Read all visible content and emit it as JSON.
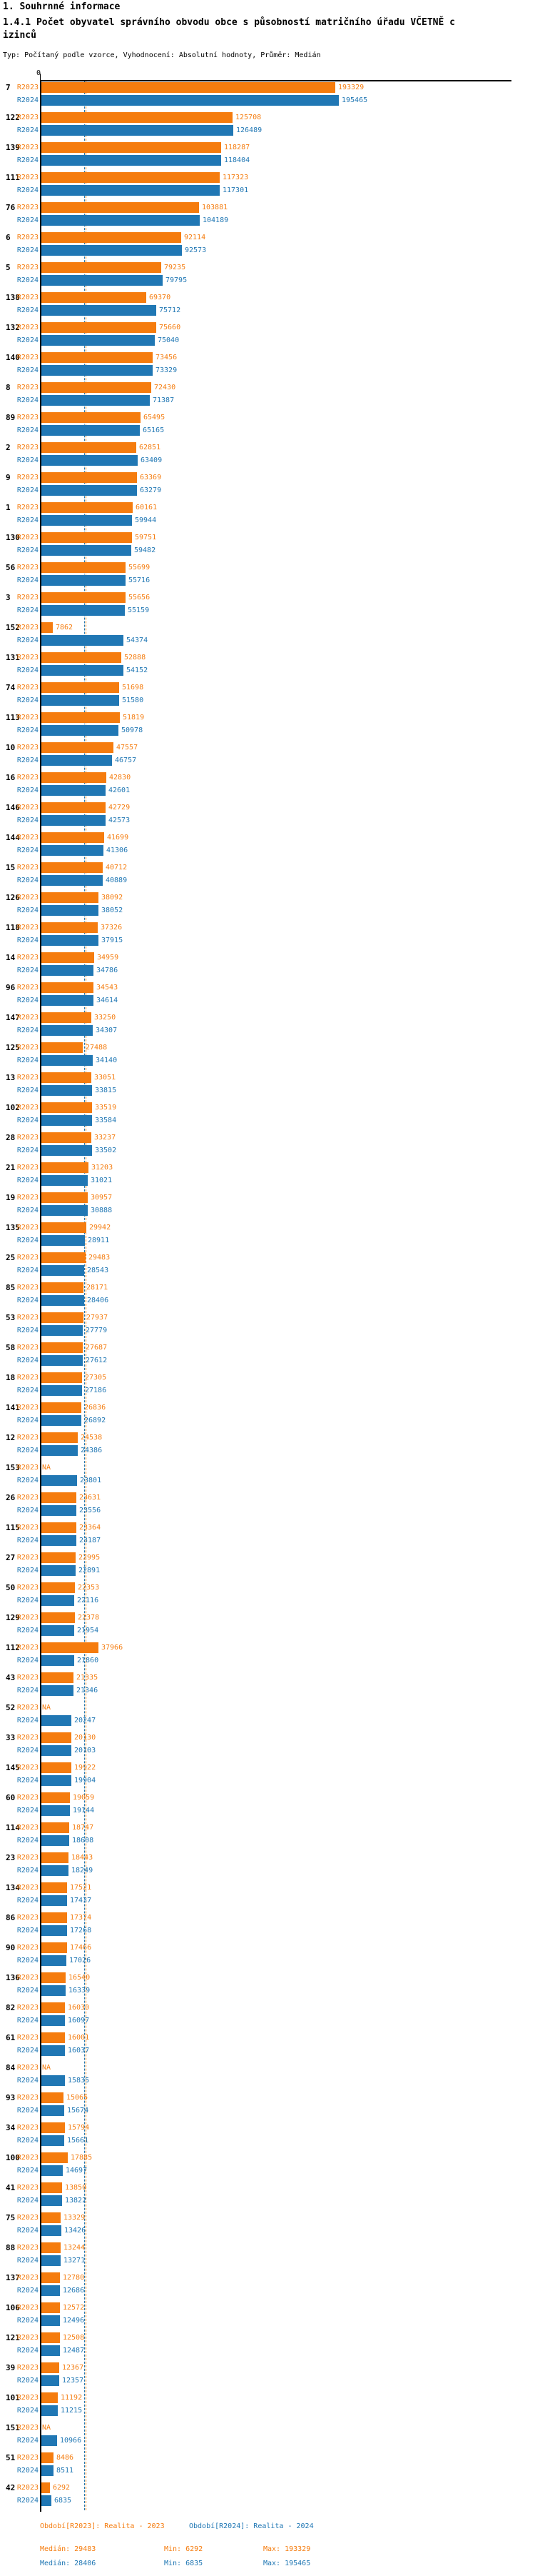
{
  "header": {
    "title": "1. Souhrnné informace",
    "subtitle": "1.4.1 Počet obyvatel správního obvodu obce s působností matričního úřadu VČETNĚ cizinců",
    "meta": "Typ: Počítaný podle vzorce, Vyhodnocení: Absolutní hodnoty, Průměr: Medián"
  },
  "chart_data": {
    "type": "bar",
    "orientation": "horizontal",
    "x_axis": {
      "zero_label": "0"
    },
    "na_label": "NA",
    "colors": {
      "r2023": "#F57C0E",
      "r2024": "#2077B4",
      "axis": "#000000"
    },
    "medians": {
      "r2023": 29483,
      "r2024": 28406
    },
    "categories": [
      "7",
      "122",
      "139",
      "111",
      "76",
      "6",
      "5",
      "138",
      "132",
      "140",
      "8",
      "89",
      "2",
      "9",
      "1",
      "130",
      "56",
      "3",
      "152",
      "131",
      "74",
      "113",
      "10",
      "16",
      "146",
      "144",
      "15",
      "126",
      "118",
      "14",
      "96",
      "147",
      "125",
      "13",
      "102",
      "28",
      "21",
      "19",
      "135",
      "25",
      "85",
      "53",
      "58",
      "18",
      "141",
      "12",
      "153",
      "26",
      "115",
      "27",
      "50",
      "129",
      "112",
      "43",
      "52",
      "33",
      "145",
      "60",
      "114",
      "23",
      "134",
      "86",
      "90",
      "136",
      "82",
      "61",
      "84",
      "93",
      "34",
      "100",
      "41",
      "75",
      "88",
      "137",
      "106",
      "121",
      "39",
      "101",
      "151",
      "51",
      "42"
    ],
    "series": [
      {
        "name": "R2023",
        "values": [
          193329,
          125708,
          118287,
          117323,
          103881,
          92114,
          79235,
          69370,
          75660,
          73456,
          72430,
          65495,
          62851,
          63369,
          60161,
          59751,
          55699,
          55656,
          7862,
          52888,
          51698,
          51819,
          47557,
          42830,
          42729,
          41699,
          40712,
          38092,
          37326,
          34959,
          34543,
          33250,
          27488,
          33051,
          33519,
          33237,
          31203,
          30957,
          29942,
          29483,
          28171,
          27937,
          27687,
          27305,
          26836,
          24538,
          "NA",
          23631,
          23364,
          22995,
          22353,
          22378,
          37966,
          21335,
          "NA",
          20130,
          19922,
          19059,
          18747,
          18443,
          17521,
          17374,
          17466,
          16540,
          16030,
          16001,
          "NA",
          15065,
          15794,
          17885,
          13850,
          13329,
          13244,
          12780,
          12572,
          12508,
          12367,
          11192,
          "NA",
          8486,
          6292
        ]
      },
      {
        "name": "R2024",
        "values": [
          195465,
          126489,
          118404,
          117301,
          104189,
          92573,
          79795,
          75712,
          75040,
          73329,
          71387,
          65165,
          63409,
          63279,
          59944,
          59482,
          55716,
          55159,
          54374,
          54152,
          51580,
          50978,
          46757,
          42601,
          42573,
          41306,
          40889,
          38052,
          37915,
          34786,
          34614,
          34307,
          34140,
          33815,
          33584,
          33502,
          31021,
          30888,
          28911,
          28543,
          28406,
          27779,
          27612,
          27186,
          26892,
          24386,
          23801,
          23556,
          23187,
          22891,
          22116,
          21954,
          21860,
          21346,
          20247,
          20103,
          19904,
          19144,
          18608,
          18249,
          17437,
          17268,
          17026,
          16339,
          16097,
          16037,
          15835,
          15674,
          15661,
          14697,
          13822,
          13426,
          13271,
          12686,
          12496,
          12487,
          12357,
          11215,
          10966,
          8511,
          6835
        ]
      }
    ]
  },
  "legend": {
    "period_r2023": "Období[R2023]: Realita - 2023",
    "period_r2024": "Období[R2024]: Realita - 2024",
    "stats_r2023": {
      "median": "Medián: 29483",
      "min": "Min: 6292",
      "max": "Max: 193329"
    },
    "stats_r2024": {
      "median": "Medián: 28406",
      "min": "Min: 6835",
      "max": "Max: 195465"
    }
  }
}
